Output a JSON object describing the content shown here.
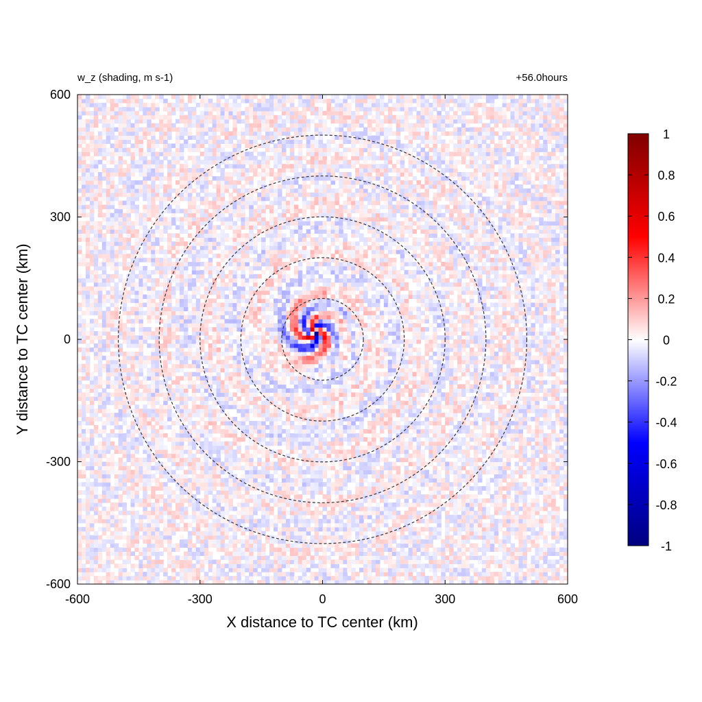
{
  "chart_data": {
    "type": "heatmap",
    "title_left": "w_z (shading, m s-1)",
    "title_right": "+56.0hours",
    "xlabel": "X distance to TC center (km)",
    "ylabel": "Y distance to TC center (km)",
    "xlim": [
      -600,
      600
    ],
    "ylim": [
      -600,
      600
    ],
    "xticks": [
      -600,
      -300,
      0,
      300,
      600
    ],
    "yticks": [
      -600,
      -300,
      0,
      300,
      600
    ],
    "colorbar": {
      "range": [
        -1,
        1
      ],
      "ticks": [
        1,
        0.8,
        0.6,
        0.4,
        0.2,
        0,
        -0.2,
        -0.4,
        -0.6,
        -0.8,
        -1
      ],
      "colormap": [
        "#000080",
        "#0000ff",
        "#ffffff",
        "#ff0000",
        "#800000"
      ]
    },
    "range_rings_km": [
      100,
      200,
      300,
      400,
      500
    ],
    "field_description_values": {
      "center_x_km": -20,
      "center_y_km": 20,
      "core_max": 1.0,
      "core_min": -1.0,
      "background_amplitude": 0.2
    }
  }
}
